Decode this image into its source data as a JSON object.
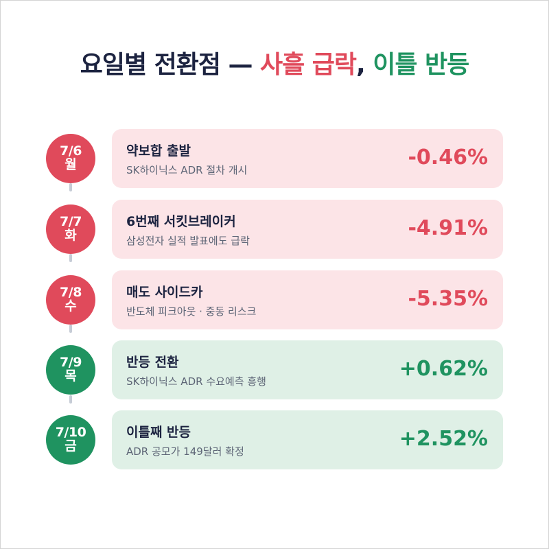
{
  "title": {
    "part1": "요일별 전환점 — ",
    "part2": "사흘 급락",
    "part3": ", ",
    "part4": "이틀 반등"
  },
  "colors": {
    "down": "#e04a5b",
    "up": "#1f9360",
    "down_bg": "#fce4e7",
    "up_bg": "#dff0e6",
    "title_text": "#1c2340"
  },
  "days": [
    {
      "date": "7/6",
      "weekday": "월",
      "heading": "약보합 출발",
      "detail": "SK하이닉스 ADR 절차 개시",
      "change": "-0.46%",
      "trend": "down"
    },
    {
      "date": "7/7",
      "weekday": "화",
      "heading": "6번째 서킷브레이커",
      "detail": "삼성전자 실적 발표에도 급락",
      "change": "-4.91%",
      "trend": "down"
    },
    {
      "date": "7/8",
      "weekday": "수",
      "heading": "매도 사이드카",
      "detail": "반도체 피크아웃 · 중동 리스크",
      "change": "-5.35%",
      "trend": "down"
    },
    {
      "date": "7/9",
      "weekday": "목",
      "heading": "반등 전환",
      "detail": "SK하이닉스 ADR 수요예측 흥행",
      "change": "+0.62%",
      "trend": "up"
    },
    {
      "date": "7/10",
      "weekday": "금",
      "heading": "이틀째 반등",
      "detail": "ADR 공모가 149달러 확정",
      "change": "+2.52%",
      "trend": "up"
    }
  ]
}
